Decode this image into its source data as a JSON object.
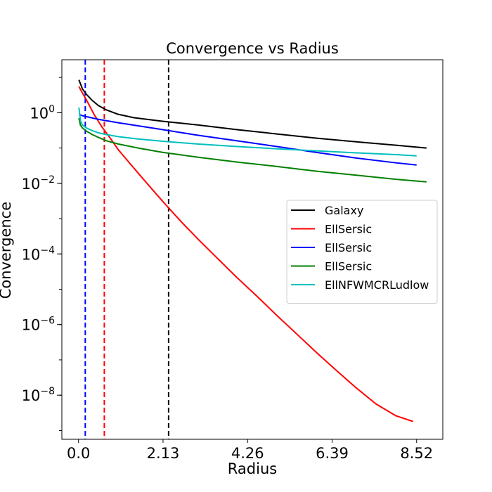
{
  "chart_data": {
    "type": "line",
    "title": "Convergence vs Radius",
    "xlabel": "Radius",
    "ylabel": "Convergence",
    "x_scale": "linear",
    "y_scale": "log",
    "xlim": [
      -0.42,
      9.18
    ],
    "ylim_log10": [
      -9.25,
      1.5
    ],
    "x_ticks": [
      {
        "value": 0.0,
        "label": "0.0"
      },
      {
        "value": 2.13,
        "label": "2.13"
      },
      {
        "value": 4.26,
        "label": "4.26"
      },
      {
        "value": 6.39,
        "label": "6.39"
      },
      {
        "value": 8.52,
        "label": "8.52"
      }
    ],
    "y_ticks": [
      {
        "log10": 0,
        "base": "10",
        "exp": "0"
      },
      {
        "log10": -2,
        "base": "10",
        "exp": "−2"
      },
      {
        "log10": -4,
        "base": "10",
        "exp": "−4"
      },
      {
        "log10": -6,
        "base": "10",
        "exp": "−6"
      },
      {
        "log10": -8,
        "base": "10",
        "exp": "−8"
      }
    ],
    "legend_position": "center-right",
    "series": [
      {
        "name": "Galaxy",
        "color": "#000000",
        "x": [
          0.01,
          0.1,
          0.2,
          0.35,
          0.5,
          0.7,
          1.0,
          1.4,
          2.13,
          3.0,
          4.0,
          5.0,
          6.0,
          7.0,
          8.0,
          8.77
        ],
        "y": [
          8.5,
          4.7,
          3.3,
          2.2,
          1.6,
          1.2,
          0.9,
          0.72,
          0.57,
          0.45,
          0.33,
          0.25,
          0.19,
          0.15,
          0.12,
          0.1
        ]
      },
      {
        "name": "EllSersic",
        "color": "#ff0000",
        "x": [
          0.01,
          0.1,
          0.2,
          0.4,
          0.6,
          0.8,
          1.0,
          1.3,
          1.6,
          2.13,
          2.6,
          3.0,
          3.5,
          4.0,
          4.5,
          5.0,
          5.5,
          6.0,
          6.5,
          7.0,
          7.5,
          8.0,
          8.43
        ],
        "y": [
          5.5,
          3.6,
          2.3,
          0.86,
          0.38,
          0.19,
          0.09,
          0.036,
          0.0145,
          0.003,
          0.00079,
          0.00027,
          7.5e-05,
          2.1e-05,
          6.3e-06,
          1.8e-06,
          5.4e-07,
          1.6e-07,
          5e-08,
          1.6e-08,
          5.6e-09,
          2.6e-09,
          1.8e-09
        ]
      },
      {
        "name": "EllSersic",
        "color": "#0000ff",
        "x": [
          0.01,
          0.1,
          0.5,
          1.0,
          2.13,
          3.0,
          4.0,
          5.0,
          6.0,
          7.0,
          8.0,
          8.52
        ],
        "y": [
          0.9,
          0.82,
          0.65,
          0.52,
          0.33,
          0.23,
          0.16,
          0.11,
          0.075,
          0.052,
          0.038,
          0.033
        ]
      },
      {
        "name": "EllSersic",
        "color": "#008000",
        "x": [
          0.01,
          0.05,
          0.1,
          0.2,
          0.35,
          0.5,
          0.7,
          1.0,
          1.5,
          2.13,
          3.0,
          4.0,
          5.0,
          6.0,
          7.0,
          8.0,
          8.77
        ],
        "y": [
          0.7,
          0.44,
          0.37,
          0.3,
          0.24,
          0.2,
          0.16,
          0.13,
          0.1,
          0.075,
          0.055,
          0.04,
          0.03,
          0.022,
          0.017,
          0.013,
          0.011
        ]
      },
      {
        "name": "EllNFWMCRLudlow",
        "color": "#00bfbf",
        "x": [
          0.01,
          0.05,
          0.1,
          0.2,
          0.35,
          0.5,
          0.7,
          1.0,
          1.5,
          2.13,
          3.0,
          4.0,
          5.0,
          6.0,
          7.0,
          8.0,
          8.52
        ],
        "y": [
          1.4,
          0.58,
          0.45,
          0.37,
          0.31,
          0.27,
          0.24,
          0.21,
          0.18,
          0.155,
          0.13,
          0.11,
          0.095,
          0.083,
          0.073,
          0.065,
          0.06
        ]
      }
    ],
    "vertical_lines": [
      {
        "x": 0.17,
        "color": "#0000ff",
        "style": "dashed"
      },
      {
        "x": 0.65,
        "color": "#ff0000",
        "style": "dashed"
      },
      {
        "x": 2.27,
        "color": "#000000",
        "style": "dashed"
      }
    ]
  }
}
